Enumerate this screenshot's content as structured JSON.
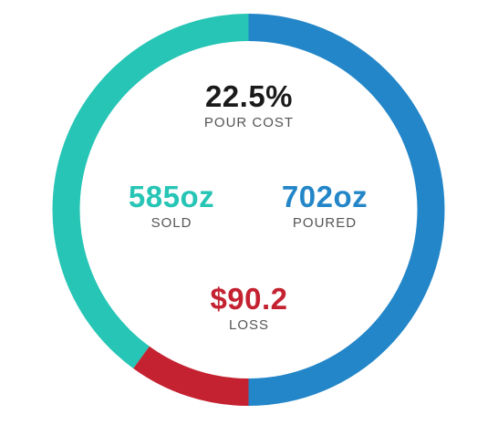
{
  "chart_data": {
    "type": "pie",
    "variant": "donut",
    "slices": [
      {
        "name": "POURED",
        "value": 50.0,
        "color": "#2386c8"
      },
      {
        "name": "LOSS",
        "value": 10.0,
        "color": "#c42231"
      },
      {
        "name": "SOLD",
        "value": 40.0,
        "color": "#26c5b5"
      }
    ],
    "center_metrics": {
      "pour_cost": {
        "value": "22.5%",
        "label": "POUR COST",
        "color": "#1a1a1a"
      },
      "sold": {
        "value": "585oz",
        "label": "SOLD",
        "color": "#26c5b5"
      },
      "poured": {
        "value": "702oz",
        "label": "POURED",
        "color": "#2386c8"
      },
      "loss": {
        "value": "$90.2",
        "label": "LOSS",
        "color": "#c42231"
      }
    }
  }
}
